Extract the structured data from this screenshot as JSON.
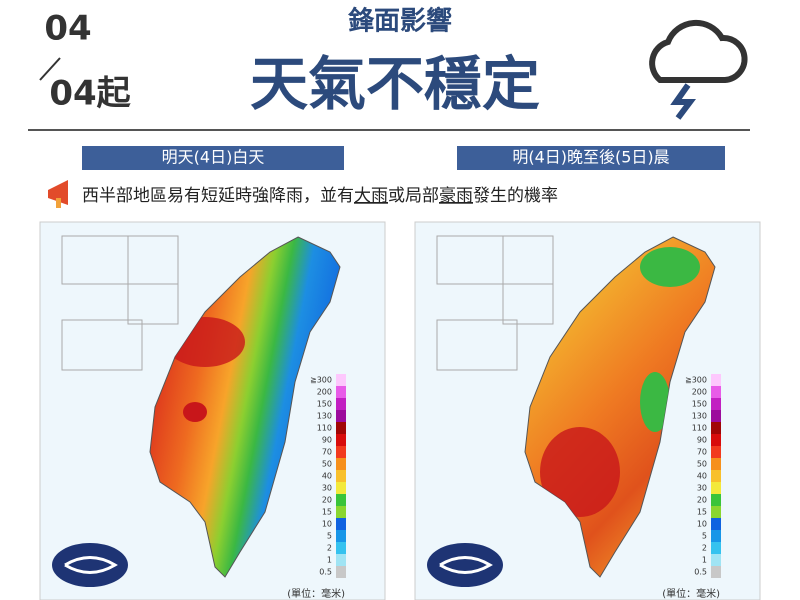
{
  "header": {
    "date_top": "04",
    "date_bottom": "04起",
    "subtitle": "鋒面影響",
    "title": "天氣不穩定"
  },
  "periods": [
    "明天(4日)白天",
    "明(4日)晚至後(5日)晨"
  ],
  "notice": {
    "parts": [
      "西半部地區易有短延時強降雨，並有",
      "大雨",
      "或局部",
      "豪雨",
      "發生的機率"
    ]
  },
  "legend": {
    "labels": [
      "≧300",
      "200",
      "150",
      "130",
      "110",
      "90",
      "70",
      "50",
      "40",
      "30",
      "20",
      "15",
      "10",
      "5",
      "2",
      "1",
      "0.5"
    ],
    "colors": [
      "#fdc8fd",
      "#e85ce8",
      "#c21fc2",
      "#9c0b9c",
      "#a10606",
      "#d80c0c",
      "#f23a1e",
      "#f6901c",
      "#f8c02c",
      "#f3e93b",
      "#3ac43a",
      "#8ad62f",
      "#0f62e0",
      "#1796e8",
      "#35c2ef",
      "#a0e4f4",
      "#c8c8c8"
    ],
    "unit": "(單位：毫米)"
  }
}
